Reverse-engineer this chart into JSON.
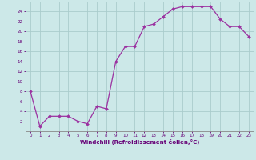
{
  "x": [
    0,
    1,
    2,
    3,
    4,
    5,
    6,
    7,
    8,
    9,
    10,
    11,
    12,
    13,
    14,
    15,
    16,
    17,
    18,
    19,
    20,
    21,
    22,
    23
  ],
  "y": [
    8,
    1,
    3,
    3,
    3,
    2,
    1.5,
    5,
    4.5,
    14,
    17,
    17,
    21,
    21.5,
    23,
    24.5,
    25,
    25,
    25,
    25,
    22.5,
    21,
    21,
    19
  ],
  "line_color": "#9b30a0",
  "marker_color": "#9b30a0",
  "bg_color": "#cce8e8",
  "grid_color": "#aacccc",
  "xlabel": "Windchill (Refroidissement éolien,°C)",
  "xlabel_color": "#660077",
  "tick_color": "#660077",
  "ylim": [
    0,
    26
  ],
  "xlim": [
    -0.5,
    23.5
  ],
  "yticks": [
    2,
    4,
    6,
    8,
    10,
    12,
    14,
    16,
    18,
    20,
    22,
    24
  ],
  "xticks": [
    0,
    1,
    2,
    3,
    4,
    5,
    6,
    7,
    8,
    9,
    10,
    11,
    12,
    13,
    14,
    15,
    16,
    17,
    18,
    19,
    20,
    21,
    22,
    23
  ]
}
